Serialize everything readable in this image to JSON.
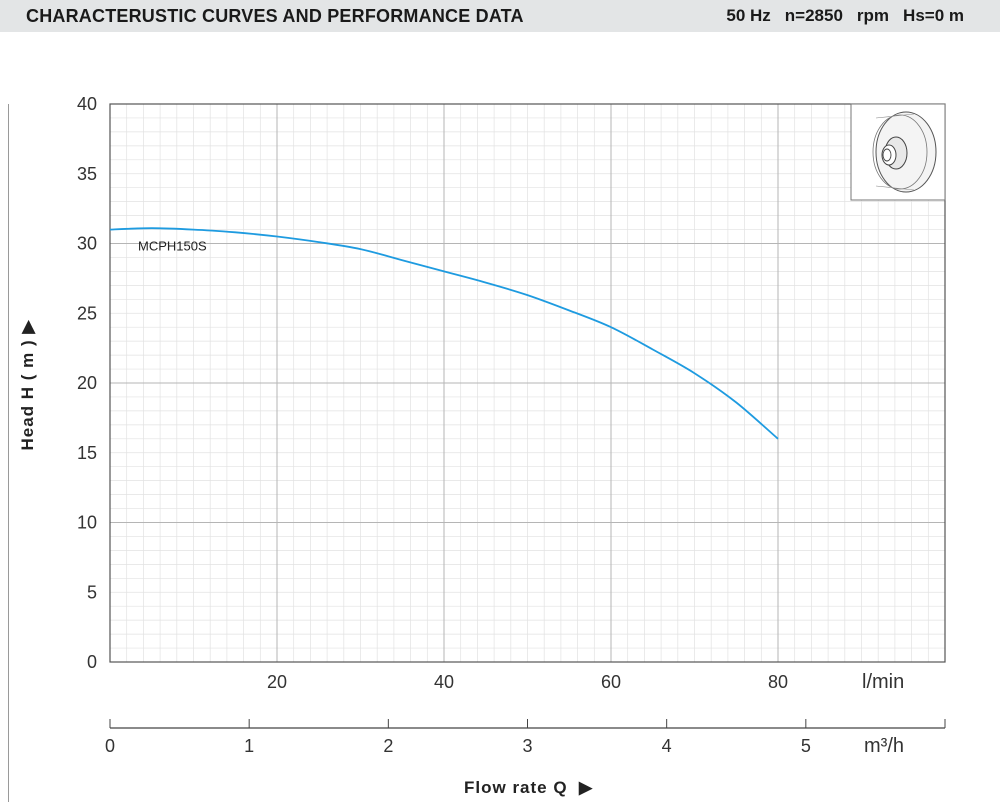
{
  "header": {
    "title": "CHARACTERUSTIC CURVES AND PERFORMANCE DATA",
    "frequency": "50 Hz",
    "speed": "n=2850",
    "speed_unit": "rpm",
    "suction": "Hs=0 m"
  },
  "colors": {
    "curve": "#1e9be0",
    "grid_major": "#b5b5b5",
    "grid_minor": "#e2e2e2",
    "header_bg": "#e3e5e6"
  },
  "impeller_icon": "impeller-diagram-icon",
  "chart_data": {
    "type": "line",
    "ylabel": "Head H ( m )",
    "xlabel": "Flow rate Q",
    "x_unit_primary": "l/min",
    "x_unit_secondary": "m³/h",
    "xlim": [
      0,
      100
    ],
    "ylim": [
      0,
      40
    ],
    "x_ticks_primary": [
      20,
      40,
      60,
      80
    ],
    "y_ticks": [
      0,
      5,
      10,
      15,
      20,
      25,
      30,
      35,
      40
    ],
    "x_ticks_secondary": [
      0,
      1,
      2,
      3,
      4,
      5
    ],
    "secondary_xlim": [
      0,
      6
    ],
    "grid": true,
    "series": [
      {
        "name": "MCPH150S",
        "x": [
          0,
          5,
          10,
          15,
          20,
          25,
          30,
          35,
          40,
          45,
          50,
          55,
          60,
          65,
          70,
          75,
          80
        ],
        "y": [
          31.0,
          31.1,
          31.0,
          30.8,
          30.5,
          30.1,
          29.6,
          28.8,
          28.0,
          27.2,
          26.3,
          25.2,
          24.0,
          22.4,
          20.7,
          18.6,
          16.0
        ]
      }
    ]
  }
}
